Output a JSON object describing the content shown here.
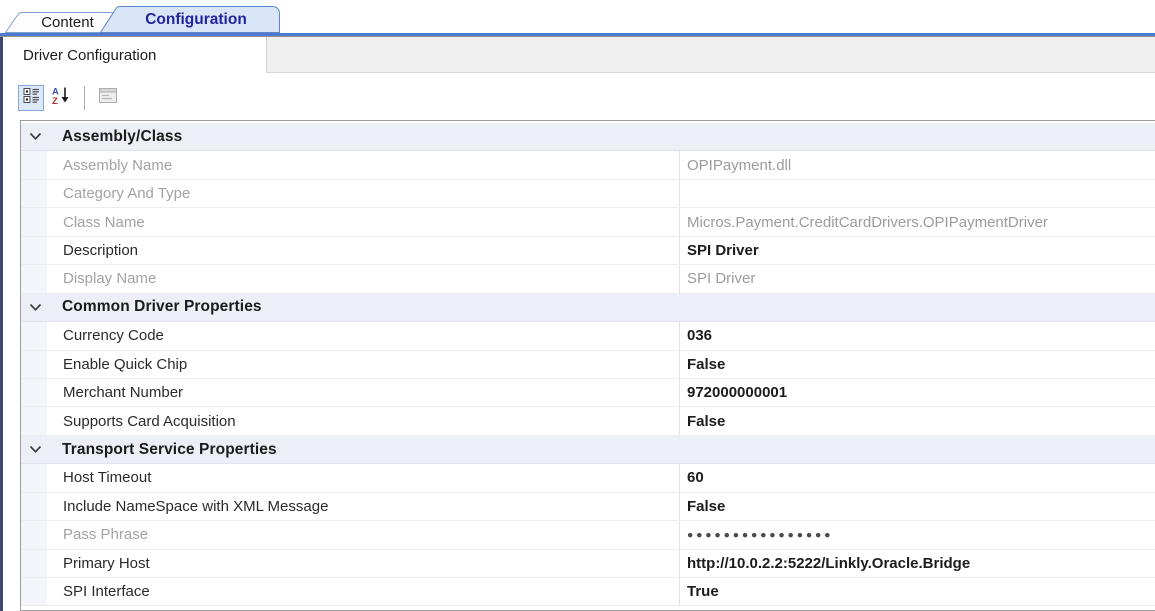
{
  "tabs": {
    "content": "Content",
    "configuration": "Configuration"
  },
  "subtab": {
    "label": "Driver Configuration"
  },
  "toolbar": {
    "categorized_button": "categorized-view",
    "sort_button": "alphabetical-sort",
    "property_pages_button": "property-pages"
  },
  "grid": {
    "sections": [
      {
        "title": "Assembly/Class",
        "rows": [
          {
            "name": "Assembly Name",
            "value": "OPIPayment.dll",
            "name_muted": true,
            "value_style": "muted"
          },
          {
            "name": "Category And Type",
            "value": "",
            "name_muted": true,
            "value_style": "muted"
          },
          {
            "name": "Class Name",
            "value": "Micros.Payment.CreditCardDrivers.OPIPaymentDriver",
            "name_muted": true,
            "value_style": "muted"
          },
          {
            "name": "Description",
            "value": "SPI Driver",
            "name_muted": false,
            "value_style": "bold"
          },
          {
            "name": "Display Name",
            "value": "SPI Driver",
            "name_muted": true,
            "value_style": "muted"
          }
        ]
      },
      {
        "title": "Common Driver Properties",
        "rows": [
          {
            "name": "Currency Code",
            "value": "036",
            "name_muted": false,
            "value_style": "bold"
          },
          {
            "name": "Enable Quick Chip",
            "value": "False",
            "name_muted": false,
            "value_style": "bold"
          },
          {
            "name": "Merchant Number",
            "value": "972000000001",
            "name_muted": false,
            "value_style": "bold"
          },
          {
            "name": "Supports Card Acquisition",
            "value": "False",
            "name_muted": false,
            "value_style": "bold"
          }
        ]
      },
      {
        "title": "Transport Service Properties",
        "rows": [
          {
            "name": "Host Timeout",
            "value": "60",
            "name_muted": false,
            "value_style": "bold"
          },
          {
            "name": "Include NameSpace with XML Message",
            "value": "False",
            "name_muted": false,
            "value_style": "bold"
          },
          {
            "name": "Pass Phrase",
            "value": "●●●●●●●●●●●●●●●●",
            "name_muted": true,
            "value_style": "dots"
          },
          {
            "name": "Primary Host",
            "value": "http://10.0.2.2:5222/Linkly.Oracle.Bridge",
            "name_muted": false,
            "value_style": "bold"
          },
          {
            "name": "SPI Interface",
            "value": "True",
            "name_muted": false,
            "value_style": "bold"
          }
        ]
      }
    ]
  },
  "colors": {
    "active_tab_bg": "#D8E6F8",
    "tab_border": "#6E94CE",
    "active_tab_text": "#24249E",
    "tab_underline": "#4D7BD2",
    "category_row_bg": "#ECEFF6",
    "muted_text": "#A2A2A2",
    "toolbar_selected_bg": "#DCE9FA"
  }
}
